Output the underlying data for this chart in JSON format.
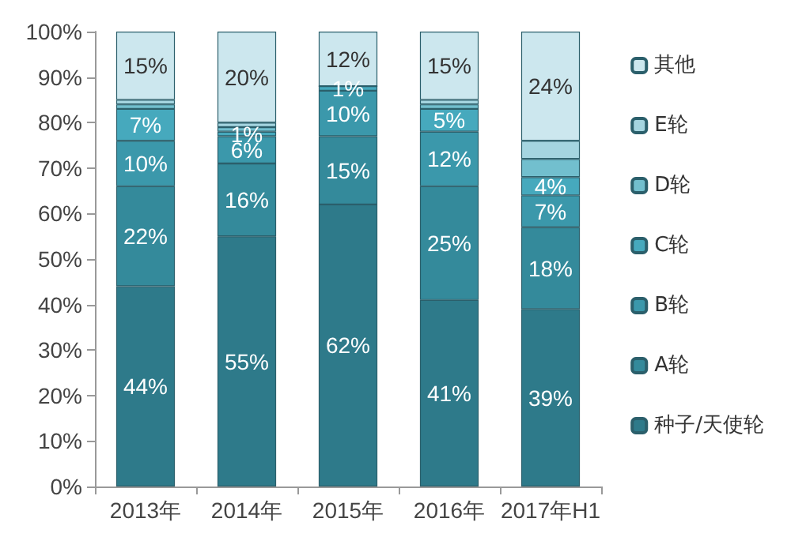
{
  "chart_data": {
    "type": "bar",
    "stacked": true,
    "categories": [
      "2013年",
      "2014年",
      "2015年",
      "2016年",
      "2017年H1"
    ],
    "series": [
      {
        "name": "种子/天使轮",
        "color": "#2e7a8a",
        "values": [
          44,
          55,
          62,
          41,
          39
        ],
        "value_labels": [
          "44%",
          "55%",
          "62%",
          "41%",
          "39%"
        ]
      },
      {
        "name": "A轮",
        "color": "#348a9b",
        "values": [
          22,
          16,
          15,
          25,
          18
        ],
        "value_labels": [
          "22%",
          "16%",
          "15%",
          "25%",
          "18%"
        ]
      },
      {
        "name": "B轮",
        "color": "#3b98ab",
        "values": [
          10,
          6,
          10,
          12,
          7
        ],
        "value_labels": [
          "10%",
          "6%",
          "10%",
          "12%",
          "7%"
        ]
      },
      {
        "name": "C轮",
        "color": "#46a9bd",
        "values": [
          7,
          1,
          1,
          5,
          4
        ],
        "value_labels": [
          "7%",
          "1%",
          "1%",
          "5%",
          "4%"
        ]
      },
      {
        "name": "D轮",
        "color": "#72bfce",
        "values": [
          1,
          1,
          0,
          1,
          4
        ],
        "value_labels": [
          null,
          null,
          null,
          null,
          null
        ]
      },
      {
        "name": "E轮",
        "color": "#a5d5e0",
        "values": [
          1,
          1,
          0,
          1,
          4
        ],
        "value_labels": [
          null,
          null,
          null,
          null,
          null
        ]
      },
      {
        "name": "其他",
        "color": "#cce7ee",
        "values": [
          15,
          20,
          12,
          15,
          24
        ],
        "value_labels": [
          "15%",
          "20%",
          "12%",
          "15%",
          "24%"
        ]
      }
    ],
    "ylim": [
      0,
      100
    ],
    "yticks": [
      {
        "value": 0,
        "label": "0%"
      },
      {
        "value": 10,
        "label": "10%"
      },
      {
        "value": 20,
        "label": "20%"
      },
      {
        "value": 30,
        "label": "30%"
      },
      {
        "value": 40,
        "label": "40%"
      },
      {
        "value": 50,
        "label": "50%"
      },
      {
        "value": 60,
        "label": "60%"
      },
      {
        "value": 70,
        "label": "70%"
      },
      {
        "value": 80,
        "label": "80%"
      },
      {
        "value": 90,
        "label": "90%"
      },
      {
        "value": 100,
        "label": "100%"
      }
    ],
    "grid": false,
    "legend": "right"
  }
}
